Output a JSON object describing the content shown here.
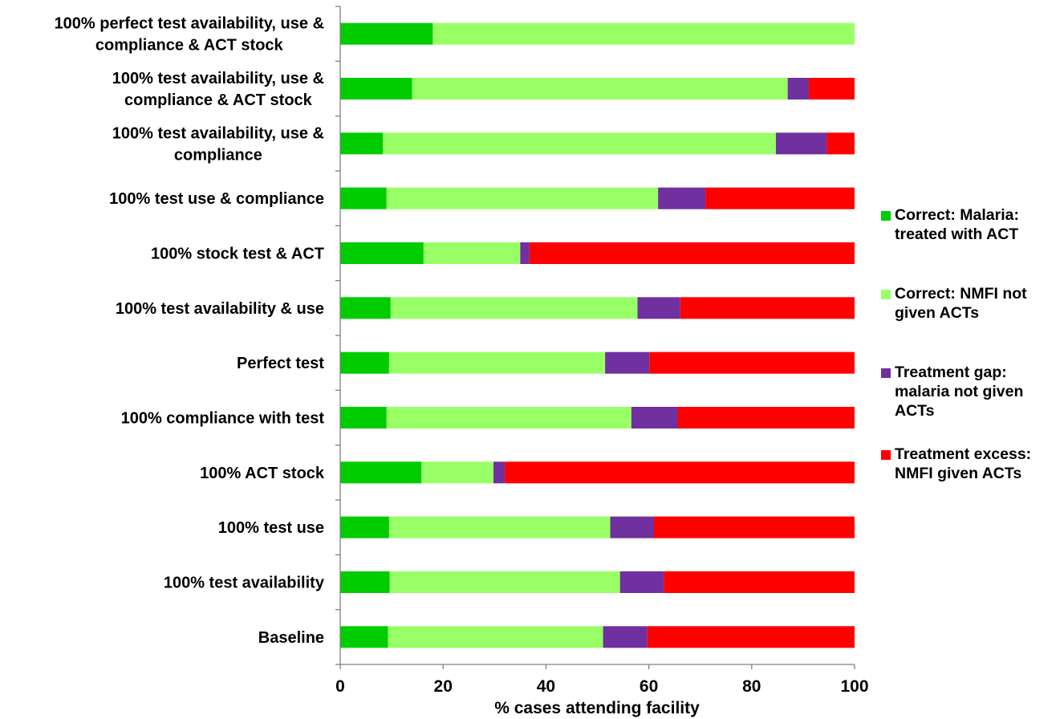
{
  "chart_data": {
    "type": "bar",
    "orientation": "horizontal",
    "stacked": true,
    "categories": [
      "100% perfect test availability, use & compliance & ACT stock",
      "100% test availability, use & compliance & ACT stock",
      "100% test availability, use & compliance",
      "100% test  use & compliance",
      "100% stock test  & ACT",
      "100% test  availability & use",
      "Perfect test",
      "100% compliance with test",
      "100% ACT stock",
      "100% test  use",
      "100% test availability",
      "Baseline"
    ],
    "category_lines": [
      [
        "100% perfect test availability, use &",
        "compliance & ACT stock"
      ],
      [
        "100% test availability, use &",
        "compliance & ACT stock"
      ],
      [
        "100% test availability, use &",
        "compliance"
      ],
      [
        "100% test  use & compliance"
      ],
      [
        "100% stock test  & ACT"
      ],
      [
        "100% test  availability & use"
      ],
      [
        "Perfect test"
      ],
      [
        "100% compliance with test"
      ],
      [
        "100% ACT stock"
      ],
      [
        "100% test  use"
      ],
      [
        "100% test availability"
      ],
      [
        "Baseline"
      ]
    ],
    "series": [
      {
        "name": "Correct: Malaria: treated with ACT",
        "name_lines": [
          "Correct: Malaria:",
          "treated with ACT"
        ],
        "color": "#00CC00",
        "values": [
          18.0,
          14.0,
          8.3,
          9.0,
          16.2,
          9.8,
          9.5,
          9.0,
          15.8,
          9.5,
          9.6,
          9.3
        ]
      },
      {
        "name": "Correct: NMFI not given ACTs",
        "name_lines": [
          "Correct: NMFI not",
          "given ACTs"
        ],
        "color": "#99FF66",
        "values": [
          82.0,
          73.0,
          76.4,
          52.8,
          18.8,
          48.0,
          42.0,
          47.6,
          14.0,
          43.0,
          44.8,
          41.8
        ]
      },
      {
        "name": "Treatment gap: malaria not given ACTs",
        "name_lines": [
          "Treatment gap:",
          "malaria not given",
          "ACTs"
        ],
        "color": "#7030A0",
        "values": [
          0.0,
          4.1,
          9.9,
          9.2,
          1.8,
          8.3,
          8.6,
          9.0,
          2.2,
          8.5,
          8.5,
          8.6
        ]
      },
      {
        "name": "Treatment excess: NMFI given ACTs",
        "name_lines": [
          "Treatment excess:",
          "NMFI given ACTs"
        ],
        "color": "#FF0000",
        "values": [
          0.0,
          8.9,
          5.4,
          29.0,
          63.2,
          33.9,
          39.9,
          34.4,
          68.0,
          39.0,
          37.1,
          40.3
        ]
      }
    ],
    "xlabel": "% cases attending facility",
    "xlim": [
      0,
      100
    ],
    "xticks": [
      0,
      20,
      40,
      60,
      80,
      100
    ],
    "ylabel": "",
    "title": "",
    "grid": false,
    "legend_position": "right"
  }
}
